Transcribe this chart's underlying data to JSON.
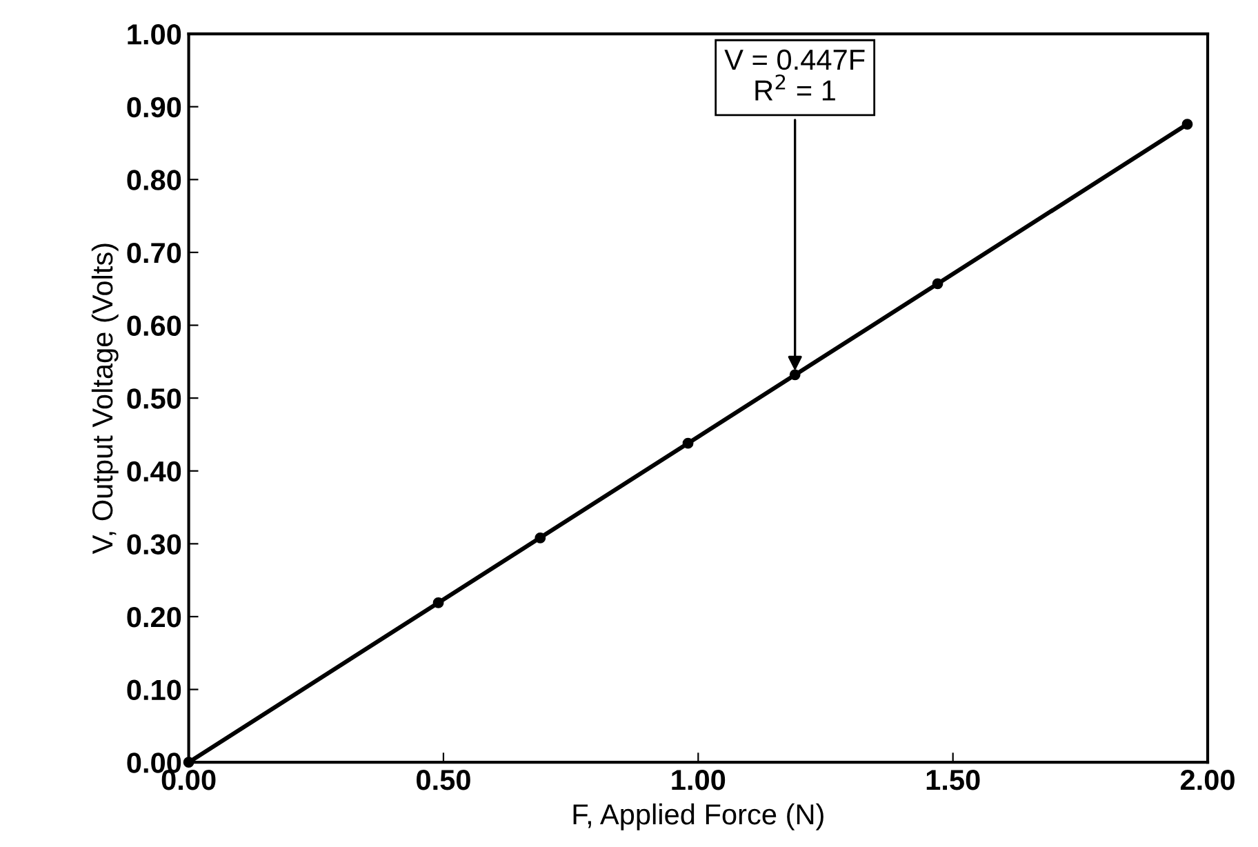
{
  "chart_data": {
    "type": "scatter",
    "xlabel": "F, Applied Force (N)",
    "ylabel": "V, Output Voltage (Volts)",
    "x": [
      0.0,
      0.49,
      0.69,
      0.98,
      1.19,
      1.47,
      1.96
    ],
    "series": [
      {
        "color": "#000000",
        "values": [
          0.0,
          0.219,
          0.308,
          0.438,
          0.532,
          0.657,
          0.876
        ],
        "marker": "circle"
      },
      {
        "type": "line",
        "color": "#000000",
        "x": [
          0.0,
          1.96
        ],
        "values": [
          0.0,
          0.876
        ],
        "marker": "none",
        "line_style": "solid"
      }
    ],
    "annotations": [
      {
        "text": "V = 0.447F\nR$^{2}$ = 1",
        "x": 1.19,
        "y": 0.532
      }
    ],
    "xlim": [
      0.0,
      2.0
    ],
    "xticks": [
      {
        "value": 0,
        "label": "0.00"
      },
      {
        "value": 0.5,
        "label": "0.50"
      },
      {
        "value": 1,
        "label": "1.00"
      },
      {
        "value": 1.5,
        "label": "1.50"
      },
      {
        "value": 2,
        "label": "2.00"
      }
    ],
    "ylim": [
      0.0,
      1.0
    ],
    "yticks": [
      {
        "value": 0,
        "label": "0.00"
      },
      {
        "value": 0.1,
        "label": "0.10"
      },
      {
        "value": 0.2,
        "label": "0.20"
      },
      {
        "value": 0.3,
        "label": "0.30"
      },
      {
        "value": 0.4,
        "label": "0.40"
      },
      {
        "value": 0.5,
        "label": "0.50"
      },
      {
        "value": 0.6,
        "label": "0.60"
      },
      {
        "value": 0.7,
        "label": "0.70"
      },
      {
        "value": 0.8,
        "label": "0.80"
      },
      {
        "value": 0.9,
        "label": "0.90"
      },
      {
        "value": 1,
        "label": "1.00"
      }
    ],
    "grid": false,
    "legend": false
  }
}
